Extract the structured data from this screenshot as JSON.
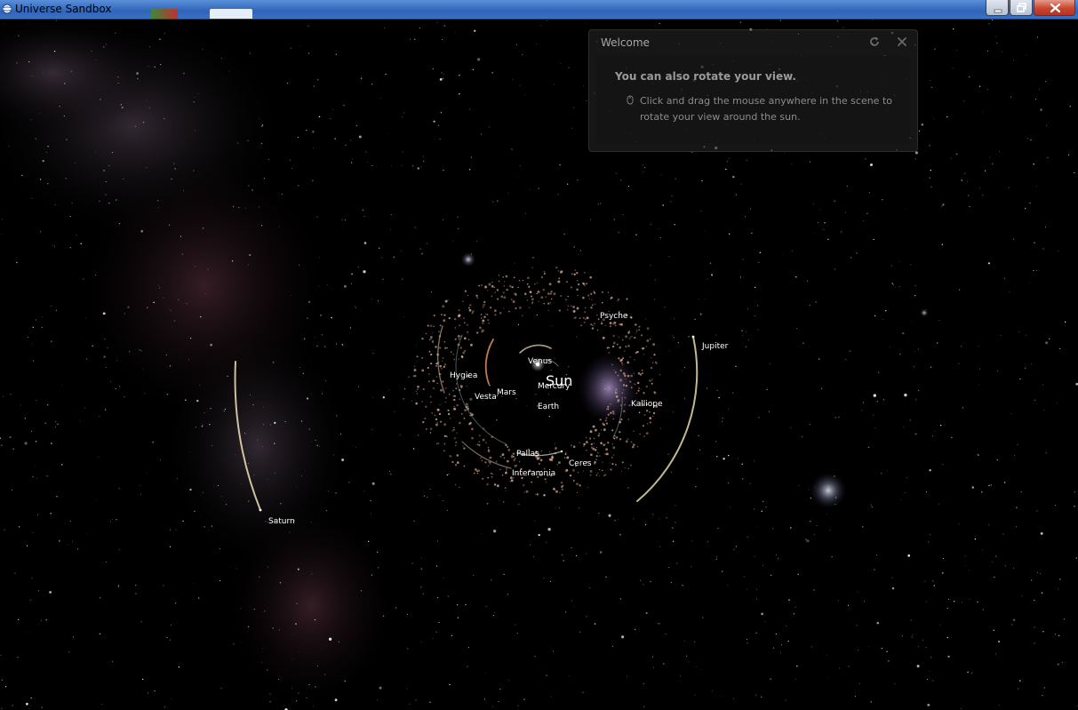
{
  "window": {
    "title": "Universe Sandbox",
    "title_bar_color": "#2f64b8"
  },
  "welcome": {
    "title": "Welcome",
    "heading": "You can also rotate your view.",
    "instruction": "Click and drag the mouse anywhere in the scene to rotate your view around the sun.",
    "icons": [
      "reset-icon",
      "close-icon",
      "mouse-icon"
    ]
  },
  "scene": {
    "sun": {
      "label": "Sun"
    },
    "bodies": [
      {
        "key": "venus",
        "label": "Venus"
      },
      {
        "key": "mercury",
        "label": "Mercury"
      },
      {
        "key": "earth",
        "label": "Earth"
      },
      {
        "key": "mars",
        "label": "Mars"
      },
      {
        "key": "vesta",
        "label": "Vesta"
      },
      {
        "key": "hygiea",
        "label": "Hygiea"
      },
      {
        "key": "psyche",
        "label": "Psyche"
      },
      {
        "key": "kalliope",
        "label": "Kalliope"
      },
      {
        "key": "pallas",
        "label": "Pallas"
      },
      {
        "key": "ceres",
        "label": "Ceres"
      },
      {
        "key": "interamnia",
        "label": "Interamnia"
      },
      {
        "key": "jupiter",
        "label": "Jupiter"
      },
      {
        "key": "saturn",
        "label": "Saturn"
      }
    ],
    "colors": {
      "space": "#000000",
      "orbit_trail": "#e8d8a8",
      "asteroid": "#d9a890",
      "label": "#ffffff"
    }
  }
}
